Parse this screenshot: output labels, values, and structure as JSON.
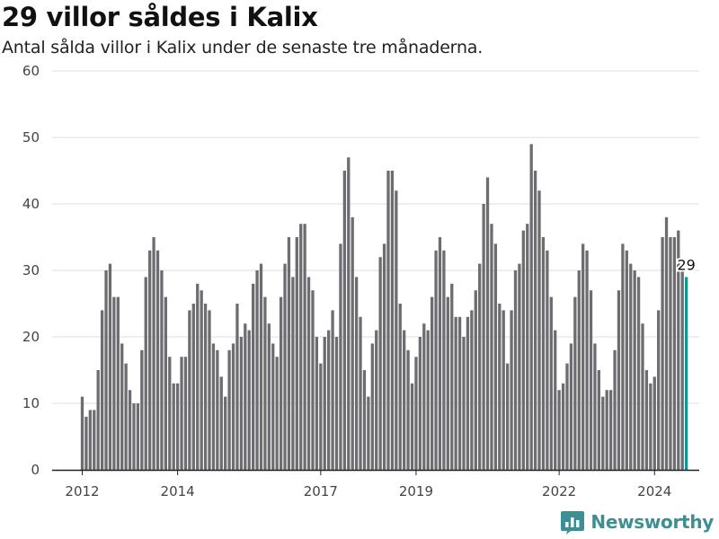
{
  "header": {
    "title": "29 villor såldes i Kalix",
    "subtitle": "Antal sålda villor i Kalix under de senaste tre månaderna."
  },
  "brand": {
    "name": "Newsworthy",
    "color": "#3c8f93"
  },
  "colors": {
    "bar": "#6d6c71",
    "highlight": "#16958e",
    "grid": "#dddddd",
    "axis": "#222222"
  },
  "chart_data": {
    "type": "bar",
    "title": "29 villor såldes i Kalix",
    "subtitle": "Antal sålda villor i Kalix under de senaste tre månaderna.",
    "xlabel": "",
    "ylabel": "",
    "ylim": [
      0,
      60
    ],
    "yticks": [
      0,
      10,
      20,
      30,
      40,
      50,
      60
    ],
    "xticks": [
      {
        "label": "2012",
        "index": 0
      },
      {
        "label": "2014",
        "index": 24
      },
      {
        "label": "2017",
        "index": 60
      },
      {
        "label": "2019",
        "index": 84
      },
      {
        "label": "2022",
        "index": 120
      },
      {
        "label": "2024",
        "index": 144
      }
    ],
    "grid": true,
    "legend": "none",
    "start": "2012-01",
    "values": [
      11,
      8,
      9,
      9,
      15,
      24,
      30,
      31,
      26,
      26,
      19,
      16,
      12,
      10,
      10,
      18,
      29,
      33,
      35,
      33,
      30,
      26,
      17,
      13,
      13,
      17,
      17,
      24,
      25,
      28,
      27,
      25,
      24,
      19,
      18,
      14,
      11,
      18,
      19,
      25,
      20,
      22,
      21,
      28,
      30,
      31,
      26,
      22,
      19,
      17,
      26,
      31,
      35,
      29,
      35,
      37,
      37,
      29,
      27,
      20,
      16,
      20,
      21,
      24,
      20,
      34,
      45,
      47,
      38,
      29,
      23,
      15,
      11,
      19,
      21,
      32,
      34,
      45,
      45,
      42,
      25,
      21,
      18,
      13,
      17,
      20,
      22,
      21,
      26,
      33,
      35,
      33,
      26,
      28,
      23,
      23,
      20,
      23,
      24,
      27,
      31,
      40,
      44,
      37,
      34,
      25,
      24,
      16,
      24,
      30,
      31,
      36,
      37,
      49,
      45,
      42,
      35,
      33,
      26,
      21,
      12,
      13,
      16,
      19,
      26,
      30,
      34,
      33,
      27,
      19,
      15,
      11,
      12,
      12,
      18,
      27,
      34,
      33,
      31,
      30,
      29,
      22,
      15,
      13,
      14,
      24,
      35,
      38,
      35,
      35,
      36,
      31,
      29
    ],
    "last_value_label": "29"
  }
}
